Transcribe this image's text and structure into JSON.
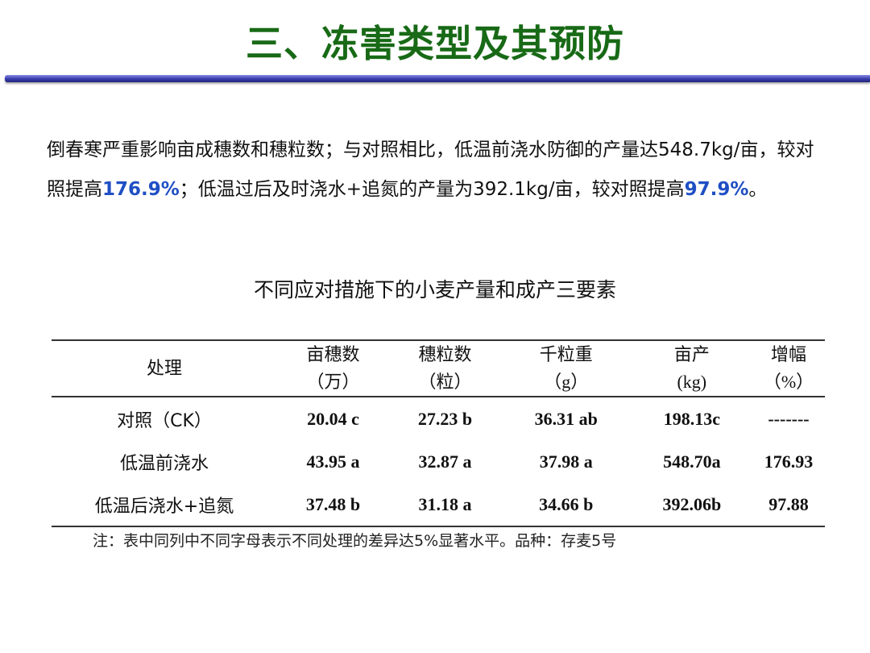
{
  "title": "三、冻害类型及其预防",
  "paragraph": {
    "p1": "倒春寒严重影响亩成穗数和穗粒数；与对照相比，低温前浇水防御的产量达548.7kg/亩，较对照提高",
    "h1": "176.9%",
    "p2": "；低温过后及时浇水+追氮的产量为392.1kg/亩，较对照提高",
    "h2": "97.9%",
    "p3": "。"
  },
  "table_caption": "不同应对措施下的小麦产量和成产三要素",
  "table": {
    "headers": [
      {
        "l1": "处理",
        "l2": ""
      },
      {
        "l1": "亩穗数",
        "l2": "（万）"
      },
      {
        "l1": "穗粒数",
        "l2": "（粒）"
      },
      {
        "l1": "千粒重",
        "l2": "（g）"
      },
      {
        "l1": "亩产",
        "l2": "(kg)"
      },
      {
        "l1": "增幅",
        "l2": "（%）"
      }
    ],
    "rows": [
      [
        "对照（CK）",
        "20.04 c",
        "27.23 b",
        "36.31 ab",
        "198.13c",
        "-------"
      ],
      [
        "低温前浇水",
        "43.95 a",
        "32.87 a",
        "37.98 a",
        "548.70a",
        "176.93"
      ],
      [
        "低温后浇水+追氮",
        "37.48 b",
        "31.18 a",
        "34.66 b",
        "392.06b",
        "97.88"
      ]
    ]
  },
  "note": "注：表中同列中不同字母表示不同处理的差异达5%显著水平。品种：存麦5号",
  "colors": {
    "title": "#186a16",
    "highlight": "#1f4fc4",
    "bar": "#3c40b0"
  }
}
